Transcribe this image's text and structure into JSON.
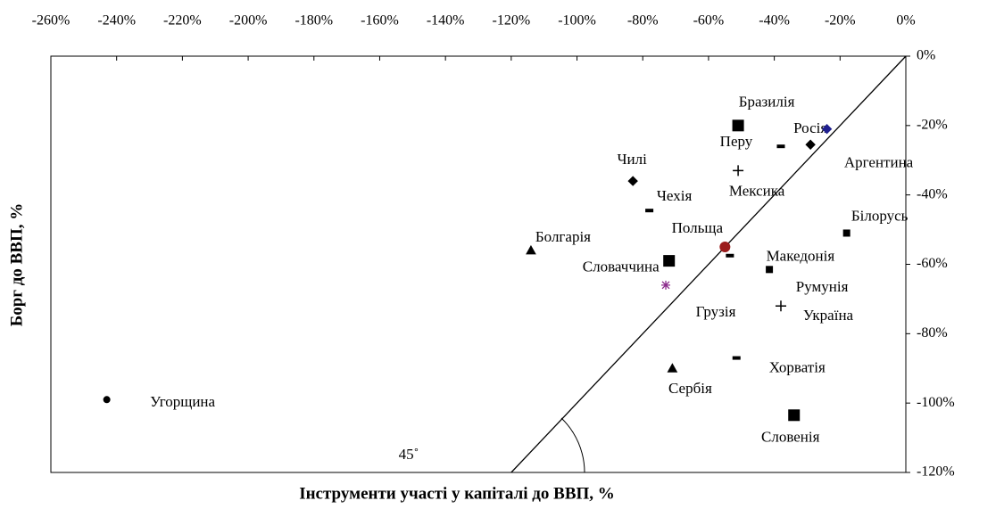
{
  "chart_data": {
    "type": "scatter",
    "x_label": "Інструменти участі у капіталі до ВВП, %",
    "y_label": "Борг до ВВП, %",
    "annotation": "45˚",
    "labels": [
      "Бразилія",
      "Перу",
      "Росія",
      "Аргентина",
      "Мексика",
      "Чилі",
      "Чехія",
      "Білорусь",
      "Польща",
      "Болгарія",
      "Македонія",
      "Словаччина",
      "Румунія",
      "Грузія",
      "Україна",
      "Хорватія",
      "Сербія",
      "Угорщина",
      "Словенія"
    ],
    "x": [
      -51,
      -38,
      -29,
      -24,
      -51,
      -83,
      -78,
      -18,
      -55,
      -114,
      -53.5,
      -72,
      -41.5,
      -73,
      -38,
      -51.5,
      -71,
      -243,
      -34
    ],
    "y": [
      -20,
      -26,
      -25.5,
      -21,
      -33,
      -36,
      -44.5,
      -51,
      -55,
      -56,
      -57.5,
      -59,
      -61.5,
      -66,
      -72,
      -87,
      -90,
      -99,
      -103.5
    ],
    "markers": [
      "square",
      "dash",
      "diamond",
      "diamond",
      "plus",
      "diamond",
      "dash",
      "small-square",
      "circle",
      "triangle",
      "dash",
      "square",
      "small-square",
      "asterisk",
      "plus",
      "dash",
      "triangle",
      "circle",
      "square"
    ],
    "colors": [
      "#000000",
      "#000000",
      "#000000",
      "#1f1f8f",
      "#000000",
      "#000000",
      "#000000",
      "#000000",
      "#9b1c1c",
      "#000000",
      "#000000",
      "#000000",
      "#000000",
      "#8b2a8b",
      "#000000",
      "#000000",
      "#000000",
      "#000000",
      "#000000"
    ],
    "xlim": [
      -260,
      0
    ],
    "ylim": [
      -120,
      0
    ],
    "xticks": [
      {
        "value": -260,
        "label": "-260%"
      },
      {
        "value": -240,
        "label": "-240%"
      },
      {
        "value": -220,
        "label": "-220%"
      },
      {
        "value": -200,
        "label": "-200%"
      },
      {
        "value": -180,
        "label": "-180%"
      },
      {
        "value": -160,
        "label": "-160%"
      },
      {
        "value": -140,
        "label": "-140%"
      },
      {
        "value": -120,
        "label": "-120%"
      },
      {
        "value": -100,
        "label": "-100%"
      },
      {
        "value": -80,
        "label": "-80%"
      },
      {
        "value": -60,
        "label": "-60%"
      },
      {
        "value": -40,
        "label": "-40%"
      },
      {
        "value": -20,
        "label": "-20%"
      },
      {
        "value": 0,
        "label": "0%"
      }
    ],
    "yticks": [
      {
        "value": 0,
        "label": "0%"
      },
      {
        "value": -20,
        "label": "-20%"
      },
      {
        "value": -40,
        "label": "-40%"
      },
      {
        "value": -60,
        "label": "-60%"
      },
      {
        "value": -80,
        "label": "-80%"
      },
      {
        "value": -100,
        "label": "-100%"
      },
      {
        "value": -120,
        "label": "-120%"
      }
    ]
  }
}
